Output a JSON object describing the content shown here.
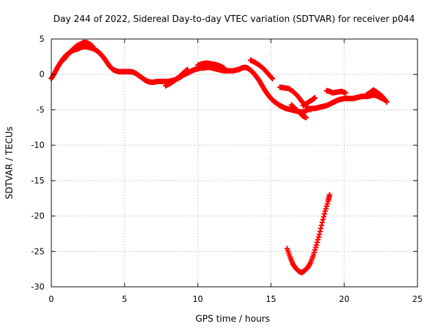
{
  "chart_data": {
    "type": "scatter",
    "title": "Day 244 of 2022, Sidereal Day-to-day VTEC variation (SDTVAR) for receiver p044",
    "xlabel": "GPS time / hours",
    "ylabel": "SDTVAR / TECUs",
    "xlim": [
      0,
      25
    ],
    "ylim": [
      -30,
      5
    ],
    "xticks": [
      "0",
      "5",
      "10",
      "15",
      "20",
      "25"
    ],
    "yticks": [
      "5",
      "0",
      "-5",
      "-10",
      "-15",
      "-20",
      "-25",
      "-30"
    ],
    "grid": true,
    "marker": "+",
    "color": "#ff0000",
    "series": [
      {
        "name": "main-band",
        "x": [
          0.0,
          0.2,
          0.4,
          0.6,
          0.8,
          1.0,
          1.2,
          1.4,
          1.6,
          1.8,
          2.0,
          2.2,
          2.4,
          2.6,
          2.8,
          3.0,
          3.2,
          3.4,
          3.6,
          3.8,
          4.0,
          4.2,
          4.4,
          4.6,
          4.8,
          5.0,
          5.2,
          5.4,
          5.6,
          5.8,
          6.0,
          6.2,
          6.4,
          6.6,
          6.8,
          7.0,
          7.2,
          7.4,
          7.6,
          7.8,
          8.0,
          8.2,
          8.4,
          8.6,
          8.8,
          9.0,
          9.2,
          9.4,
          9.6,
          9.8,
          10.0,
          10.2,
          10.4,
          10.6,
          10.8,
          11.0,
          11.2,
          11.4,
          11.6,
          11.8,
          12.0,
          12.2,
          12.4,
          12.6,
          12.8,
          13.0,
          13.2,
          13.4,
          13.6,
          13.8,
          14.0,
          14.2,
          14.4,
          14.6,
          14.8,
          15.0,
          15.2,
          15.4,
          15.6,
          15.8,
          16.0,
          16.2,
          16.4,
          16.6,
          16.8,
          17.0,
          17.2,
          17.4,
          17.6,
          17.8,
          18.0,
          18.2,
          18.4,
          18.6,
          18.8,
          19.0,
          19.2,
          19.4,
          19.6,
          19.8,
          20.0,
          20.2,
          20.4,
          20.6,
          20.8,
          21.0,
          21.2,
          21.4,
          21.6,
          21.8,
          22.0,
          22.2,
          22.4,
          22.6,
          22.8
        ],
        "y": [
          -0.6,
          0.1,
          0.9,
          1.6,
          2.2,
          2.7,
          3.0,
          3.3,
          3.5,
          3.6,
          3.8,
          3.9,
          3.9,
          3.8,
          3.7,
          3.5,
          3.2,
          2.8,
          2.3,
          1.7,
          1.1,
          0.7,
          0.5,
          0.4,
          0.4,
          0.4,
          0.4,
          0.4,
          0.3,
          0.1,
          -0.2,
          -0.5,
          -0.8,
          -1.0,
          -1.1,
          -1.1,
          -1.0,
          -1.0,
          -1.0,
          -1.0,
          -1.0,
          -0.9,
          -0.8,
          -0.6,
          -0.4,
          -0.1,
          0.1,
          0.3,
          0.5,
          0.7,
          0.8,
          0.9,
          0.9,
          1.0,
          1.0,
          0.9,
          0.8,
          0.7,
          0.6,
          0.5,
          0.5,
          0.5,
          0.5,
          0.6,
          0.7,
          0.9,
          1.0,
          0.9,
          0.6,
          0.2,
          -0.3,
          -0.9,
          -1.6,
          -2.3,
          -2.9,
          -3.4,
          -3.8,
          -4.1,
          -4.4,
          -4.6,
          -4.8,
          -4.9,
          -5.0,
          -5.1,
          -5.2,
          -5.3,
          -5.3,
          -5.1,
          -4.9,
          -4.8,
          -4.8,
          -4.7,
          -4.6,
          -4.5,
          -4.4,
          -4.2,
          -4.0,
          -3.8,
          -3.6,
          -3.5,
          -3.4,
          -3.4,
          -3.4,
          -3.4,
          -3.3,
          -3.2,
          -3.1,
          -3.1,
          -3.1,
          -3.0,
          -2.9,
          -3.0,
          -3.2,
          -3.4,
          -3.6
        ]
      },
      {
        "name": "upper-branch-early",
        "x": [
          0.8,
          1.0,
          1.2,
          1.4,
          1.6,
          1.8,
          2.0,
          2.2,
          2.4,
          2.6,
          2.8
        ],
        "y": [
          2.0,
          2.5,
          3.0,
          3.4,
          3.8,
          4.1,
          4.3,
          4.5,
          4.5,
          4.3,
          4.0
        ]
      },
      {
        "name": "branch-8h",
        "x": [
          7.8,
          8.1,
          8.4,
          8.7,
          9.0,
          9.3
        ],
        "y": [
          -1.6,
          -1.3,
          -0.9,
          -0.4,
          0.2,
          0.7
        ]
      },
      {
        "name": "branch-10h",
        "x": [
          10.0,
          10.3,
          10.6,
          10.9,
          11.2,
          11.5,
          11.8
        ],
        "y": [
          1.3,
          1.5,
          1.6,
          1.5,
          1.4,
          1.2,
          0.9
        ]
      },
      {
        "name": "branch-14h",
        "x": [
          13.6,
          13.9,
          14.2,
          14.5,
          14.8,
          15.1
        ],
        "y": [
          2.0,
          1.7,
          1.3,
          0.8,
          0.1,
          -0.6
        ]
      },
      {
        "name": "branch-16h",
        "x": [
          15.6,
          15.9,
          16.2,
          16.5,
          16.8,
          17.1,
          17.4,
          17.7
        ],
        "y": [
          -1.8,
          -1.9,
          -2.0,
          -2.4,
          -3.0,
          -3.8,
          -4.5,
          -5.0
        ]
      },
      {
        "name": "branch-18h",
        "x": [
          17.2,
          17.5,
          17.8,
          18.0
        ],
        "y": [
          -4.4,
          -4.0,
          -3.6,
          -3.3
        ]
      },
      {
        "name": "branch-dip-17h",
        "x": [
          16.4,
          16.7,
          17.0,
          17.2,
          17.4
        ],
        "y": [
          -4.3,
          -4.9,
          -5.5,
          -5.9,
          -6.1
        ]
      },
      {
        "name": "branch-19h",
        "x": [
          18.8,
          19.0,
          19.2,
          19.5,
          19.8,
          20.1
        ],
        "y": [
          -2.3,
          -2.4,
          -2.6,
          -2.5,
          -2.4,
          -2.6
        ]
      },
      {
        "name": "branch-22h",
        "x": [
          21.5,
          21.8,
          22.0,
          22.3,
          22.6,
          22.9
        ],
        "y": [
          -2.9,
          -2.5,
          -2.2,
          -2.6,
          -3.1,
          -3.9
        ]
      },
      {
        "name": "separate-arc",
        "x": [
          16.1,
          16.3,
          16.5,
          16.7,
          16.9,
          17.1,
          17.3,
          17.5,
          17.7,
          17.9,
          18.1,
          18.3,
          18.5,
          18.7,
          18.9,
          19.0
        ],
        "y": [
          -24.6,
          -25.8,
          -26.8,
          -27.4,
          -27.8,
          -28.0,
          -27.7,
          -27.3,
          -26.6,
          -25.5,
          -24.1,
          -22.6,
          -20.9,
          -19.3,
          -17.9,
          -17.0
        ]
      }
    ]
  }
}
